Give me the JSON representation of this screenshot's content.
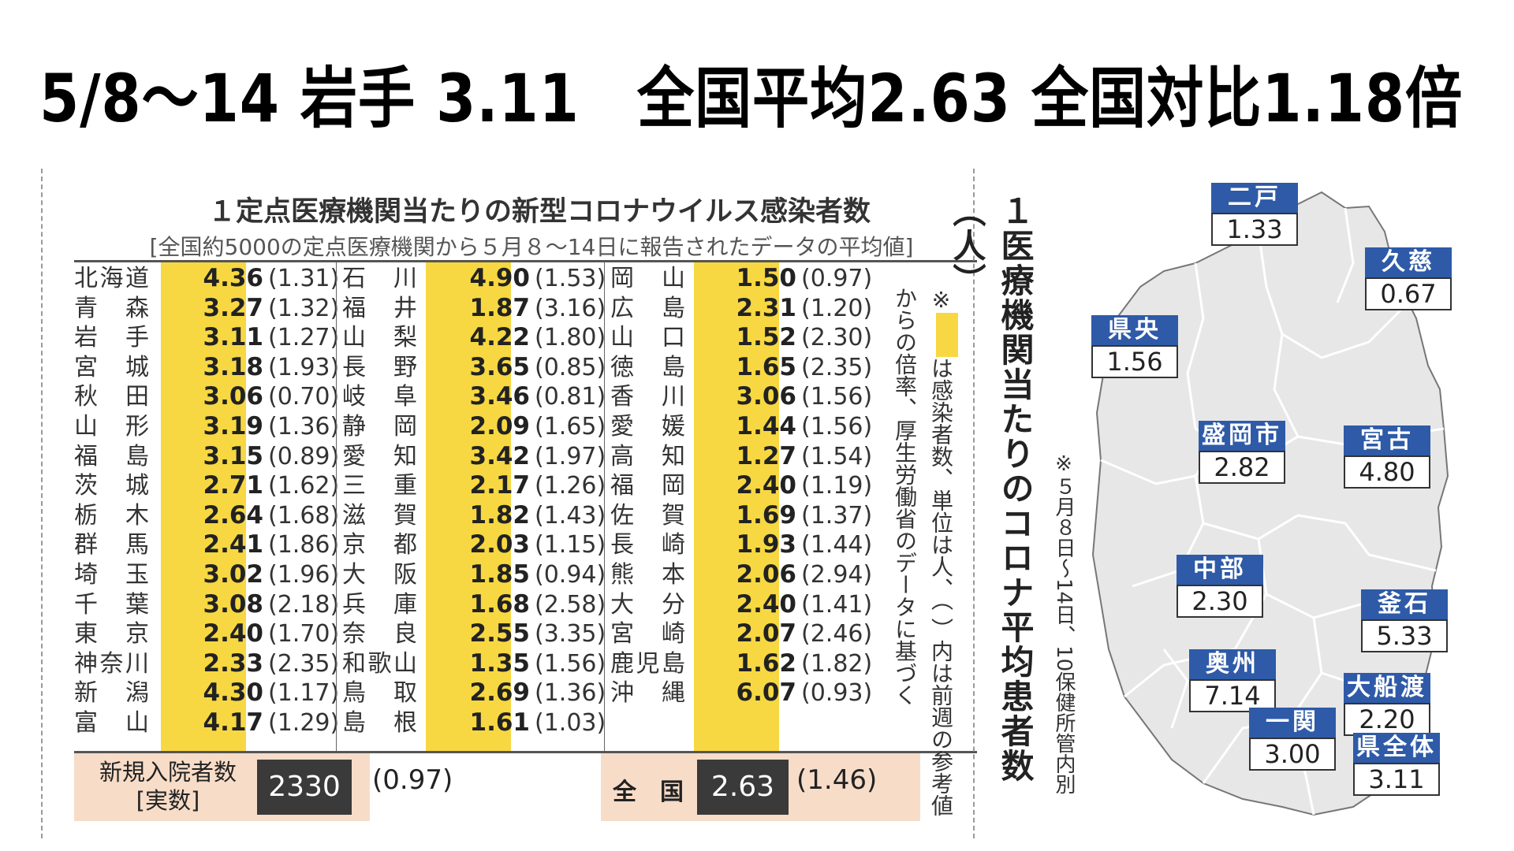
{
  "headline": "5/8〜14 岩手 3.11　全国平均2.63 全国対比1.18倍",
  "table": {
    "title": "１定点医療機関当たりの新型コロナウイルス感染者数",
    "subtitle": "[全国約5000の定点医療機関から５月８〜14日に報告されたデータの平均値]",
    "columns": [
      [
        {
          "pref": "北海道",
          "value": "4.36",
          "prev": "(1.31)"
        },
        {
          "pref": "青森",
          "value": "3.27",
          "prev": "(1.32)"
        },
        {
          "pref": "岩手",
          "value": "3.11",
          "prev": "(1.27)"
        },
        {
          "pref": "宮城",
          "value": "3.18",
          "prev": "(1.93)"
        },
        {
          "pref": "秋田",
          "value": "3.06",
          "prev": "(0.70)"
        },
        {
          "pref": "山形",
          "value": "3.19",
          "prev": "(1.36)"
        },
        {
          "pref": "福島",
          "value": "3.15",
          "prev": "(0.89)"
        },
        {
          "pref": "茨城",
          "value": "2.71",
          "prev": "(1.62)"
        },
        {
          "pref": "栃木",
          "value": "2.64",
          "prev": "(1.68)"
        },
        {
          "pref": "群馬",
          "value": "2.41",
          "prev": "(1.86)"
        },
        {
          "pref": "埼玉",
          "value": "3.02",
          "prev": "(1.96)"
        },
        {
          "pref": "千葉",
          "value": "3.08",
          "prev": "(2.18)"
        },
        {
          "pref": "東京",
          "value": "2.40",
          "prev": "(1.70)"
        },
        {
          "pref": "神奈川",
          "value": "2.33",
          "prev": "(2.35)"
        },
        {
          "pref": "新潟",
          "value": "4.30",
          "prev": "(1.17)"
        },
        {
          "pref": "富山",
          "value": "4.17",
          "prev": "(1.29)"
        }
      ],
      [
        {
          "pref": "石川",
          "value": "4.90",
          "prev": "(1.53)"
        },
        {
          "pref": "福井",
          "value": "1.87",
          "prev": "(3.16)"
        },
        {
          "pref": "山梨",
          "value": "4.22",
          "prev": "(1.80)"
        },
        {
          "pref": "長野",
          "value": "3.65",
          "prev": "(0.85)"
        },
        {
          "pref": "岐阜",
          "value": "3.46",
          "prev": "(0.81)"
        },
        {
          "pref": "静岡",
          "value": "2.09",
          "prev": "(1.65)"
        },
        {
          "pref": "愛知",
          "value": "3.42",
          "prev": "(1.97)"
        },
        {
          "pref": "三重",
          "value": "2.17",
          "prev": "(1.26)"
        },
        {
          "pref": "滋賀",
          "value": "1.82",
          "prev": "(1.43)"
        },
        {
          "pref": "京都",
          "value": "2.03",
          "prev": "(1.15)"
        },
        {
          "pref": "大阪",
          "value": "1.85",
          "prev": "(0.94)"
        },
        {
          "pref": "兵庫",
          "value": "1.68",
          "prev": "(2.58)"
        },
        {
          "pref": "奈良",
          "value": "2.55",
          "prev": "(3.35)"
        },
        {
          "pref": "和歌山",
          "value": "1.35",
          "prev": "(1.56)"
        },
        {
          "pref": "鳥取",
          "value": "2.69",
          "prev": "(1.36)"
        },
        {
          "pref": "島根",
          "value": "1.61",
          "prev": "(1.03)"
        }
      ],
      [
        {
          "pref": "岡山",
          "value": "1.50",
          "prev": "(0.97)"
        },
        {
          "pref": "広島",
          "value": "2.31",
          "prev": "(1.20)"
        },
        {
          "pref": "山口",
          "value": "1.52",
          "prev": "(2.30)"
        },
        {
          "pref": "徳島",
          "value": "1.65",
          "prev": "(2.35)"
        },
        {
          "pref": "香川",
          "value": "3.06",
          "prev": "(1.56)"
        },
        {
          "pref": "愛媛",
          "value": "1.44",
          "prev": "(1.56)"
        },
        {
          "pref": "高知",
          "value": "1.27",
          "prev": "(1.54)"
        },
        {
          "pref": "福岡",
          "value": "2.40",
          "prev": "(1.19)"
        },
        {
          "pref": "佐賀",
          "value": "1.69",
          "prev": "(1.37)"
        },
        {
          "pref": "長崎",
          "value": "1.93",
          "prev": "(1.44)"
        },
        {
          "pref": "熊本",
          "value": "2.06",
          "prev": "(2.94)"
        },
        {
          "pref": "大分",
          "value": "2.40",
          "prev": "(1.41)"
        },
        {
          "pref": "宮崎",
          "value": "2.07",
          "prev": "(2.46)"
        },
        {
          "pref": "鹿児島",
          "value": "1.62",
          "prev": "(1.82)"
        },
        {
          "pref": "沖縄",
          "value": "6.07",
          "prev": "(0.93)"
        }
      ]
    ],
    "hospital_label": "新規入院者数\n[実数]",
    "hospital_value": "2330",
    "hospital_prev": "(0.97)",
    "national_label": "全　国",
    "national_value": "2.63",
    "national_prev": "(1.46)",
    "note_mark": "※",
    "note_text": "は感染者数、単位は人、（ ）内は前週の参考値からの倍率、厚生労働省のデータに基づく",
    "highlight_color": "#f7d842"
  },
  "map": {
    "title": "１医療機関当たりのコロナ平均患者数（人）",
    "note": "※５月８日〜14日、10保健所管内別",
    "regions": [
      {
        "name": "二戸",
        "value": "1.33"
      },
      {
        "name": "久慈",
        "value": "0.67"
      },
      {
        "name": "県央",
        "value": "1.56"
      },
      {
        "name": "盛岡市",
        "value": "2.82"
      },
      {
        "name": "宮古",
        "value": "4.80"
      },
      {
        "name": "中部",
        "value": "2.30"
      },
      {
        "name": "釜石",
        "value": "5.33"
      },
      {
        "name": "奥州",
        "value": "7.14"
      },
      {
        "name": "大船渡",
        "value": "2.20"
      },
      {
        "name": "一関",
        "value": "3.00"
      },
      {
        "name": "県全体",
        "value": "3.11"
      }
    ],
    "label_color": "#2e5aa8"
  }
}
